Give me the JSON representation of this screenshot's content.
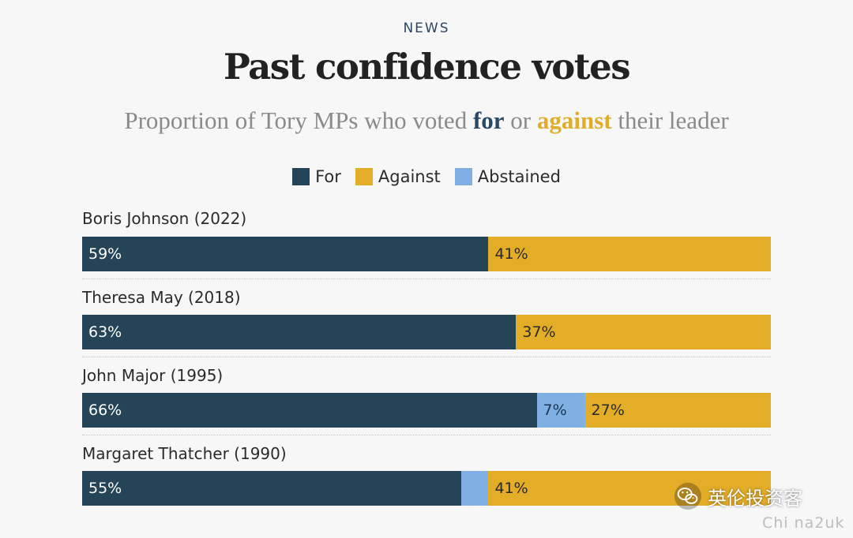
{
  "header": {
    "kicker": "NEWS",
    "title": "Past confidence votes",
    "subtitle_pre": "Proportion of Tory MPs who voted ",
    "subtitle_for": "for",
    "subtitle_mid": " or ",
    "subtitle_against": "against",
    "subtitle_post": " their leader"
  },
  "colors": {
    "for": "#264458",
    "against": "#e3ad28",
    "abstained": "#7fb0e3"
  },
  "legend": [
    {
      "key": "for",
      "label": "For"
    },
    {
      "key": "against",
      "label": "Against"
    },
    {
      "key": "abstained",
      "label": "Abstained"
    }
  ],
  "chart_data": {
    "type": "bar",
    "orientation": "horizontal",
    "stacked": true,
    "title": "Past confidence votes",
    "subtitle": "Proportion of Tory MPs who voted for or against their leader",
    "xlim": [
      0,
      100
    ],
    "categories": [
      "Boris Johnson (2022)",
      "Theresa May (2018)",
      "John Major (1995)",
      "Margaret Thatcher (1990)"
    ],
    "series": [
      {
        "name": "For",
        "values": [
          59,
          63,
          66,
          55
        ],
        "labels": [
          "59%",
          "63%",
          "66%",
          "55%"
        ]
      },
      {
        "name": "Abstained",
        "values": [
          0,
          0,
          7,
          4
        ],
        "labels": [
          "",
          "",
          "7%",
          ""
        ]
      },
      {
        "name": "Against",
        "values": [
          41,
          37,
          27,
          41
        ],
        "labels": [
          "41%",
          "37%",
          "27%",
          "41%"
        ]
      }
    ],
    "legend_position": "top-center",
    "grid": false
  },
  "watermark": {
    "text": "英伦投资客",
    "icon": "wechat-icon",
    "text2": "Chi na2uk"
  }
}
